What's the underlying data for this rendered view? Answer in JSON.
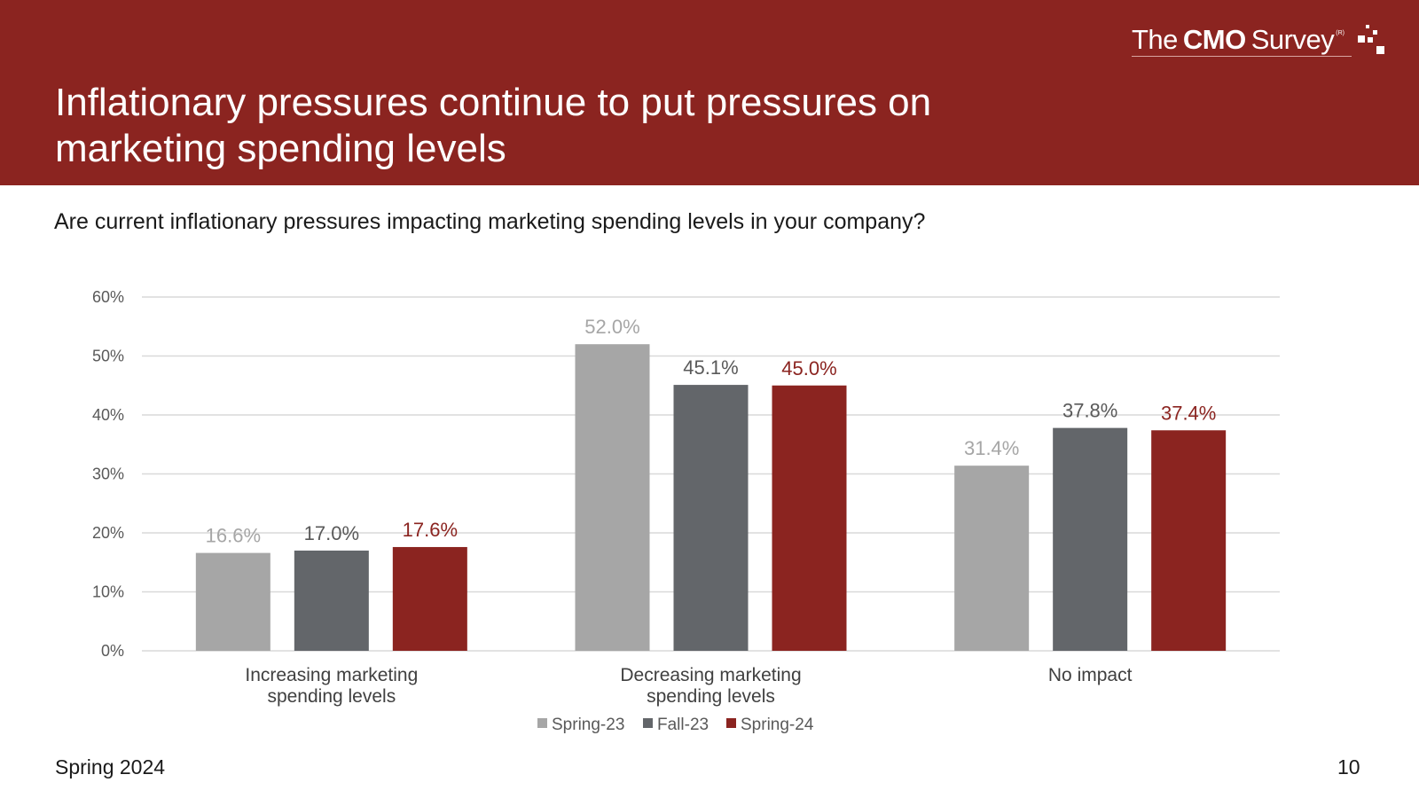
{
  "header": {
    "title": "Inflationary pressures continue to put pressures on marketing spending levels",
    "logo": {
      "the": "The",
      "cmo": "CMO",
      "survey": "Survey",
      "mark": "(R)"
    }
  },
  "question": "Are current inflationary pressures impacting marketing spending levels in your company?",
  "footer": {
    "left": "Spring 2024",
    "page": "10"
  },
  "colors": {
    "header_bg": "#8b2420",
    "spring23": "#a6a6a6",
    "fall23": "#63666a",
    "spring24": "#8b2420",
    "grid": "#d9d9d9"
  },
  "chart_data": {
    "type": "bar",
    "categories": [
      [
        "Increasing marketing",
        "spending levels"
      ],
      [
        "Decreasing marketing",
        "spending levels"
      ],
      [
        "No impact"
      ]
    ],
    "series": [
      {
        "name": "Spring-23",
        "color": "#a6a6a6",
        "label_color": "#a6a6a6",
        "values": [
          16.6,
          52.0,
          31.4
        ],
        "labels": [
          "16.6%",
          "52.0%",
          "31.4%"
        ]
      },
      {
        "name": "Fall-23",
        "color": "#63666a",
        "label_color": "#595959",
        "values": [
          17.0,
          45.1,
          37.8
        ],
        "labels": [
          "17.0%",
          "45.1%",
          "37.8%"
        ]
      },
      {
        "name": "Spring-24",
        "color": "#8b2420",
        "label_color": "#8b2420",
        "values": [
          17.6,
          45.0,
          37.4
        ],
        "labels": [
          "17.6%",
          "45.0%",
          "37.4%"
        ]
      }
    ],
    "yticks": [
      "0%",
      "10%",
      "20%",
      "30%",
      "40%",
      "50%",
      "60%"
    ],
    "ylim": [
      0,
      60
    ],
    "grid": true,
    "legend_position": "bottom"
  }
}
